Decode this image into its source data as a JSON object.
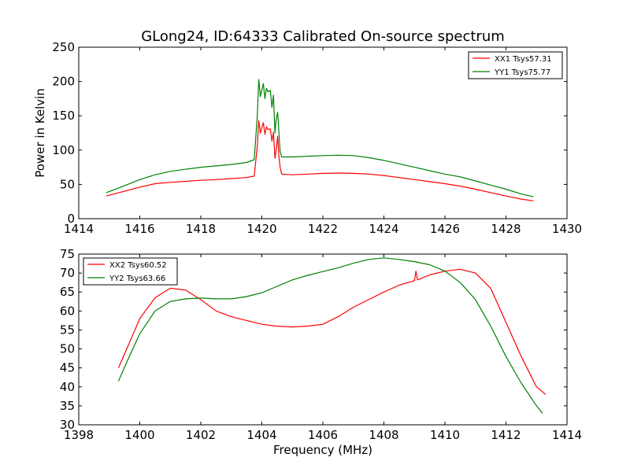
{
  "chart_data": [
    {
      "type": "line",
      "title": "GLong24, ID:64333 Calibrated On-source spectrum",
      "xlabel": "",
      "ylabel": "Power in Kelvin",
      "xlim": [
        1414,
        1430
      ],
      "ylim": [
        0,
        250
      ],
      "xticks": [
        1414,
        1416,
        1418,
        1420,
        1422,
        1424,
        1426,
        1428,
        1430
      ],
      "yticks": [
        0,
        50,
        100,
        150,
        200,
        250
      ],
      "legend_position": "top-right",
      "series": [
        {
          "name": "XX1 Tsys57.31",
          "color": "#ff0000",
          "x": [
            1414.9,
            1415.5,
            1416.0,
            1416.5,
            1417.0,
            1417.5,
            1418.0,
            1418.5,
            1419.0,
            1419.5,
            1419.75,
            1419.85,
            1419.9,
            1419.95,
            1420.05,
            1420.1,
            1420.15,
            1420.2,
            1420.28,
            1420.33,
            1420.38,
            1420.43,
            1420.47,
            1420.52,
            1420.56,
            1420.6,
            1420.65,
            1421.0,
            1421.5,
            1422.0,
            1422.5,
            1423.0,
            1423.5,
            1424.0,
            1424.5,
            1425.0,
            1425.5,
            1426.0,
            1426.5,
            1427.0,
            1427.5,
            1428.0,
            1428.5,
            1428.9
          ],
          "y": [
            33,
            40,
            46,
            51,
            53,
            54.5,
            56,
            57,
            58.5,
            60,
            62,
            105,
            143,
            125,
            140,
            123,
            134,
            130,
            131,
            113,
            126,
            88,
            100,
            120,
            90,
            75,
            65,
            64,
            65,
            66,
            66.5,
            66,
            65,
            63,
            60,
            57,
            54,
            51,
            47.5,
            43,
            38,
            33,
            28.5,
            26
          ]
        },
        {
          "name": "YY1 Tsys75.77",
          "color": "#008000",
          "x": [
            1414.9,
            1415.5,
            1416.0,
            1416.5,
            1417.0,
            1417.5,
            1418.0,
            1418.5,
            1419.0,
            1419.5,
            1419.75,
            1419.85,
            1419.9,
            1419.95,
            1420.05,
            1420.1,
            1420.15,
            1420.2,
            1420.28,
            1420.33,
            1420.38,
            1420.43,
            1420.47,
            1420.52,
            1420.56,
            1420.6,
            1420.65,
            1421.0,
            1421.5,
            1422.0,
            1422.5,
            1423.0,
            1423.5,
            1424.0,
            1424.5,
            1425.0,
            1425.5,
            1426.0,
            1426.5,
            1427.0,
            1427.5,
            1428.0,
            1428.5,
            1428.9
          ],
          "y": [
            38,
            48,
            57,
            64,
            69,
            72,
            75,
            77,
            79,
            82,
            86,
            150,
            203,
            178,
            197,
            175,
            190,
            185,
            187,
            162,
            180,
            125,
            145,
            155,
            125,
            98,
            90,
            90,
            91,
            92,
            92.5,
            92,
            89,
            85,
            80,
            75,
            70,
            65,
            61,
            55,
            49,
            43,
            36,
            32
          ]
        }
      ]
    },
    {
      "type": "line",
      "title": "",
      "xlabel": "Frequency (MHz)",
      "ylabel": "",
      "xlim": [
        1398,
        1414
      ],
      "ylim": [
        30,
        75
      ],
      "xticks": [
        1398,
        1400,
        1402,
        1404,
        1406,
        1408,
        1410,
        1412,
        1414
      ],
      "yticks": [
        30,
        35,
        40,
        45,
        50,
        55,
        60,
        65,
        70,
        75
      ],
      "legend_position": "top-left",
      "series": [
        {
          "name": "XX2 Tsys60.52",
          "color": "#ff0000",
          "x": [
            1399.3,
            1399.6,
            1400.0,
            1400.5,
            1401.0,
            1401.5,
            1402.0,
            1402.5,
            1403.0,
            1403.5,
            1404.0,
            1404.5,
            1405.0,
            1405.5,
            1406.0,
            1406.5,
            1407.0,
            1407.5,
            1408.0,
            1408.5,
            1409.0,
            1409.05,
            1409.1,
            1409.5,
            1410.0,
            1410.5,
            1411.0,
            1411.5,
            1412.0,
            1412.5,
            1413.0,
            1413.3
          ],
          "y": [
            45,
            50.5,
            58,
            63.5,
            66,
            65.5,
            63,
            60,
            58.5,
            57.5,
            56.5,
            56,
            55.8,
            56,
            56.5,
            58.5,
            61,
            63,
            65,
            66.8,
            68,
            70.5,
            68.2,
            69.5,
            70.5,
            71,
            70,
            66,
            57,
            48,
            40,
            38
          ]
        },
        {
          "name": "YY2 Tsys63.66",
          "color": "#008000",
          "x": [
            1399.3,
            1399.6,
            1400.0,
            1400.5,
            1401.0,
            1401.5,
            1402.0,
            1402.5,
            1403.0,
            1403.5,
            1404.0,
            1404.5,
            1405.0,
            1405.5,
            1406.0,
            1406.5,
            1407.0,
            1407.5,
            1408.0,
            1408.5,
            1409.0,
            1409.5,
            1410.0,
            1410.5,
            1411.0,
            1411.5,
            1412.0,
            1412.5,
            1413.0,
            1413.2
          ],
          "y": [
            41.5,
            47,
            54,
            60,
            62.5,
            63.2,
            63.4,
            63.2,
            63.2,
            63.8,
            64.8,
            66.5,
            68.2,
            69.4,
            70.4,
            71.4,
            72.6,
            73.6,
            74,
            73.6,
            73,
            72.2,
            70.5,
            67.5,
            63,
            56,
            48,
            41,
            35,
            33
          ]
        }
      ]
    }
  ]
}
